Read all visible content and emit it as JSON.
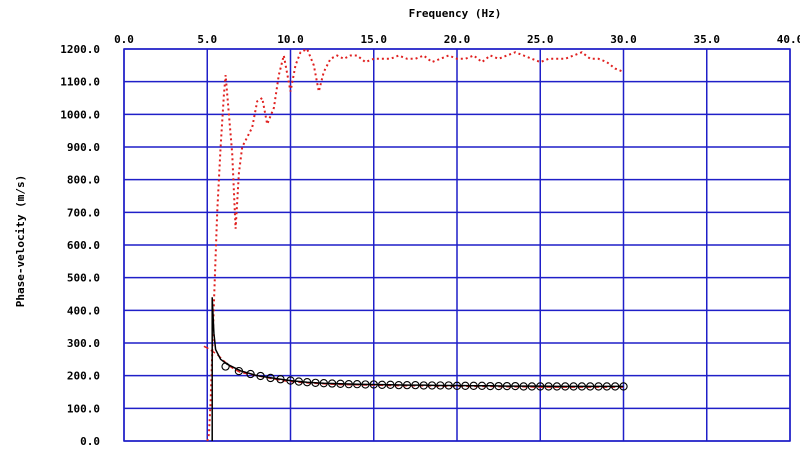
{
  "chart_data": {
    "type": "line",
    "title": "",
    "xlabel": "Frequency (Hz)",
    "ylabel": "Phase-velocity (m/s)",
    "xlim": [
      0,
      40
    ],
    "ylim": [
      0,
      1200
    ],
    "x_ticks": [
      "0.0",
      "5.0",
      "10.0",
      "15.0",
      "20.0",
      "25.0",
      "30.0",
      "35.0",
      "40.0"
    ],
    "y_ticks": [
      "0.0",
      "100.0",
      "200.0",
      "300.0",
      "400.0",
      "500.0",
      "600.0",
      "700.0",
      "800.0",
      "900.0",
      "1000.0",
      "1100.0",
      "1200.0"
    ],
    "x_axis_position": "top",
    "grid": true,
    "colors": {
      "grid": "#1f1fc8",
      "red_series": "#e0201f",
      "black_series": "#000000"
    },
    "series": [
      {
        "style": "red-dotted",
        "points": [
          [
            5.0,
            0
          ],
          [
            5.1,
            20
          ],
          [
            5.2,
            120
          ],
          [
            5.4,
            420
          ],
          [
            5.6,
            700
          ],
          [
            5.8,
            900
          ],
          [
            6.0,
            1060
          ],
          [
            6.1,
            1120
          ],
          [
            6.3,
            1000
          ],
          [
            6.5,
            880
          ],
          [
            6.7,
            650
          ],
          [
            6.9,
            820
          ],
          [
            7.1,
            900
          ],
          [
            7.4,
            930
          ],
          [
            7.7,
            960
          ],
          [
            8.0,
            1040
          ],
          [
            8.3,
            1050
          ],
          [
            8.6,
            970
          ],
          [
            9.0,
            1020
          ],
          [
            9.3,
            1120
          ],
          [
            9.6,
            1180
          ],
          [
            10.0,
            1070
          ],
          [
            10.3,
            1150
          ],
          [
            10.6,
            1190
          ],
          [
            11.0,
            1200
          ],
          [
            11.4,
            1150
          ],
          [
            11.7,
            1070
          ],
          [
            12.0,
            1130
          ],
          [
            12.4,
            1170
          ],
          [
            12.8,
            1180
          ],
          [
            13.2,
            1170
          ],
          [
            13.6,
            1180
          ],
          [
            14.0,
            1180
          ],
          [
            14.5,
            1160
          ],
          [
            15.0,
            1170
          ],
          [
            15.5,
            1170
          ],
          [
            16.0,
            1170
          ],
          [
            16.5,
            1180
          ],
          [
            17.0,
            1170
          ],
          [
            17.5,
            1170
          ],
          [
            18.0,
            1180
          ],
          [
            18.5,
            1160
          ],
          [
            19.0,
            1170
          ],
          [
            19.5,
            1180
          ],
          [
            20.0,
            1170
          ],
          [
            20.5,
            1170
          ],
          [
            21.0,
            1180
          ],
          [
            21.5,
            1160
          ],
          [
            22.0,
            1180
          ],
          [
            22.5,
            1170
          ],
          [
            23.0,
            1180
          ],
          [
            23.5,
            1190
          ],
          [
            24.0,
            1180
          ],
          [
            24.5,
            1170
          ],
          [
            25.0,
            1160
          ],
          [
            25.5,
            1170
          ],
          [
            26.0,
            1170
          ],
          [
            26.5,
            1170
          ],
          [
            27.0,
            1180
          ],
          [
            27.5,
            1190
          ],
          [
            28.0,
            1170
          ],
          [
            28.5,
            1170
          ],
          [
            29.0,
            1160
          ],
          [
            29.5,
            1140
          ],
          [
            30.0,
            1130
          ]
        ]
      },
      {
        "style": "red-dashed",
        "points": [
          [
            4.8,
            290
          ],
          [
            5.0,
            285
          ],
          [
            5.3,
            275
          ],
          [
            5.6,
            265
          ],
          [
            5.9,
            250
          ],
          [
            6.2,
            235
          ],
          [
            6.6,
            220
          ],
          [
            7.0,
            210
          ],
          [
            7.5,
            205
          ],
          [
            8.0,
            200
          ],
          [
            8.5,
            195
          ],
          [
            9.0,
            190
          ],
          [
            9.5,
            185
          ],
          [
            10.0,
            182
          ],
          [
            10.5,
            180
          ],
          [
            11.0,
            178
          ],
          [
            12.0,
            175
          ],
          [
            13.0,
            173
          ],
          [
            14.0,
            172
          ],
          [
            15.0,
            171
          ],
          [
            16.0,
            170
          ],
          [
            17.0,
            169
          ],
          [
            18.0,
            169
          ],
          [
            19.0,
            168
          ],
          [
            20.0,
            168
          ],
          [
            21.0,
            167
          ],
          [
            22.0,
            167
          ],
          [
            23.0,
            166
          ],
          [
            24.0,
            166
          ],
          [
            25.0,
            165
          ],
          [
            26.0,
            165
          ],
          [
            27.0,
            165
          ],
          [
            28.0,
            165
          ],
          [
            29.0,
            165
          ],
          [
            30.0,
            165
          ]
        ]
      },
      {
        "style": "black-solid",
        "points": [
          [
            5.3,
            0
          ],
          [
            5.3,
            100
          ],
          [
            5.3,
            440
          ],
          [
            5.4,
            330
          ],
          [
            5.5,
            280
          ],
          [
            5.8,
            250
          ],
          [
            6.2,
            235
          ],
          [
            7.0,
            215
          ],
          [
            8.0,
            200
          ],
          [
            9.0,
            192
          ],
          [
            10.0,
            185
          ],
          [
            11.0,
            180
          ],
          [
            12.0,
            177
          ],
          [
            13.0,
            175
          ],
          [
            14.0,
            174
          ],
          [
            15.0,
            173
          ],
          [
            16.0,
            172
          ],
          [
            17.0,
            171
          ],
          [
            18.0,
            171
          ],
          [
            19.0,
            170
          ],
          [
            20.0,
            170
          ],
          [
            21.0,
            169
          ],
          [
            22.0,
            169
          ],
          [
            23.0,
            168
          ],
          [
            24.0,
            168
          ],
          [
            25.0,
            168
          ],
          [
            26.0,
            167
          ],
          [
            27.0,
            167
          ],
          [
            28.0,
            167
          ],
          [
            29.0,
            167
          ],
          [
            30.0,
            167
          ]
        ]
      },
      {
        "style": "circle-markers",
        "points": [
          [
            6.1,
            228
          ],
          [
            6.9,
            214
          ],
          [
            7.6,
            205
          ],
          [
            8.2,
            199
          ],
          [
            8.8,
            193
          ],
          [
            9.4,
            189
          ],
          [
            10.0,
            185
          ],
          [
            10.5,
            182
          ],
          [
            11.0,
            180
          ],
          [
            11.5,
            178
          ],
          [
            12.0,
            177
          ],
          [
            12.5,
            176
          ],
          [
            13.0,
            175
          ],
          [
            13.5,
            174
          ],
          [
            14.0,
            174
          ],
          [
            14.5,
            173
          ],
          [
            15.0,
            173
          ],
          [
            15.5,
            172
          ],
          [
            16.0,
            172
          ],
          [
            16.5,
            171
          ],
          [
            17.0,
            171
          ],
          [
            17.5,
            171
          ],
          [
            18.0,
            170
          ],
          [
            18.5,
            170
          ],
          [
            19.0,
            170
          ],
          [
            19.5,
            170
          ],
          [
            20.0,
            169
          ],
          [
            20.5,
            169
          ],
          [
            21.0,
            169
          ],
          [
            21.5,
            169
          ],
          [
            22.0,
            168
          ],
          [
            22.5,
            168
          ],
          [
            23.0,
            168
          ],
          [
            23.5,
            168
          ],
          [
            24.0,
            167
          ],
          [
            24.5,
            167
          ],
          [
            25.0,
            167
          ],
          [
            25.5,
            167
          ],
          [
            26.0,
            167
          ],
          [
            26.5,
            167
          ],
          [
            27.0,
            167
          ],
          [
            27.5,
            167
          ],
          [
            28.0,
            167
          ],
          [
            28.5,
            167
          ],
          [
            29.0,
            167
          ],
          [
            29.5,
            167
          ],
          [
            30.0,
            167
          ]
        ]
      }
    ]
  }
}
